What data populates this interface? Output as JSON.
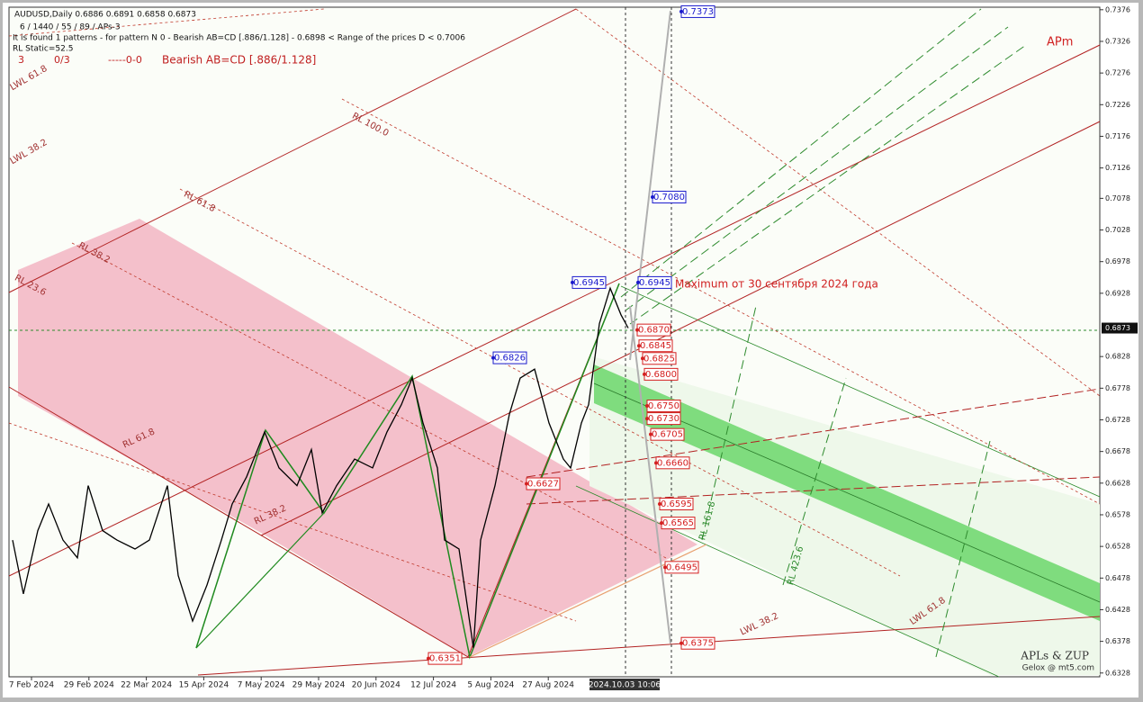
{
  "chart_data": {
    "type": "line",
    "title": "AUDUSD,Daily  0.6886 0.6891 0.6858 0.6873",
    "info_lines": [
      "6 / 1440 / 55 / 89 / APs-3",
      "It is found 1 patterns  -  for pattern N 0 - Bearish AB=CD [.886/1.128] - 0.6898 < Range of the prices D < 0.7006",
      "RL Static=52.5"
    ],
    "status": [
      "3",
      "0/3",
      "-----0-0",
      "Bearish AB=CD [.886/1.128]"
    ],
    "brand": "APm",
    "annotation": "Maximum от 30 сентября 2024 года",
    "footer": [
      "APLs & ZUP",
      "Gelox @ mt5.com"
    ],
    "line_labels": [
      "RL 100.0",
      "RL 61.8",
      "RL 38.2",
      "RL 23.6",
      "LWL 61.8",
      "LWL 38.2",
      "RL 161.8",
      "RL 423.6",
      "RL 61.8",
      "RL 38.2",
      "LWL 38.2",
      "LWL 61.8"
    ],
    "x_labels": [
      "7 Feb 2024",
      "29 Feb 2024",
      "22 Mar 2024",
      "15 Apr 2024",
      "7 May 2024",
      "29 May 2024",
      "20 Jun 2024",
      "12 Jul 2024",
      "5 Aug 2024",
      "27 Aug 2024"
    ],
    "cursor_label": "2024.10.03 10:06",
    "x": [
      1,
      4,
      8,
      11,
      15,
      19,
      22,
      26,
      30,
      35,
      39,
      44,
      47,
      51,
      55,
      59,
      62,
      66,
      71,
      75,
      80,
      84,
      87,
      91,
      96,
      101,
      105,
      109,
      112,
      115,
      119,
      121,
      125,
      129,
      131,
      135,
      139,
      142,
      146,
      150,
      154,
      156,
      159,
      161,
      164,
      167,
      170,
      172
    ],
    "values": [
      0.6538,
      0.6453,
      0.6553,
      0.6595,
      0.6538,
      0.651,
      0.6624,
      0.6553,
      0.6538,
      0.6524,
      0.6538,
      0.6624,
      0.6482,
      0.641,
      0.6467,
      0.6538,
      0.6595,
      0.6638,
      0.6709,
      0.6652,
      0.6624,
      0.6681,
      0.6581,
      0.6624,
      0.6666,
      0.6652,
      0.6709,
      0.6752,
      0.6794,
      0.6723,
      0.6652,
      0.6538,
      0.6524,
      0.6368,
      0.6538,
      0.6624,
      0.6737,
      0.6794,
      0.6808,
      0.6723,
      0.6666,
      0.6652,
      0.6723,
      0.6752,
      0.688,
      0.6936,
      0.6894,
      0.6873
    ],
    "color": "#000000",
    "xlim": [
      0,
      303
    ],
    "ylim": [
      0.6322,
      0.738
    ],
    "yticks": [
      0.7376,
      0.7326,
      0.7276,
      0.7226,
      0.7176,
      0.7126,
      0.7078,
      0.7028,
      0.6978,
      0.6928,
      0.6828,
      0.6778,
      0.6728,
      0.6678,
      0.6628,
      0.6578,
      0.6528,
      0.6478,
      0.6428,
      0.6378,
      0.6328
    ],
    "current_price": {
      "value": 0.6873,
      "label": "0.6873"
    },
    "levels": [
      {
        "value": 0.7373,
        "label": "0.7373",
        "color": "#1a1acc"
      },
      {
        "value": 0.708,
        "label": "0.7080",
        "color": "#1a1acc"
      },
      {
        "value": 0.6945,
        "label": "0.6945",
        "color": "#1a1acc"
      },
      {
        "value": 0.6945,
        "label": "0.6945",
        "color": "#1a1acc"
      },
      {
        "value": 0.6826,
        "label": "0.6826",
        "color": "#1a1acc"
      },
      {
        "value": 0.687,
        "label": "0.6870",
        "color": "#d42020"
      },
      {
        "value": 0.6845,
        "label": "0.6845",
        "color": "#d42020"
      },
      {
        "value": 0.6825,
        "label": "0.6825",
        "color": "#d42020"
      },
      {
        "value": 0.68,
        "label": "0.6800",
        "color": "#d42020"
      },
      {
        "value": 0.675,
        "label": "0.6750",
        "color": "#d42020"
      },
      {
        "value": 0.673,
        "label": "0.6730",
        "color": "#d42020"
      },
      {
        "value": 0.6705,
        "label": "0.6705",
        "color": "#d42020"
      },
      {
        "value": 0.666,
        "label": "0.6660",
        "color": "#d42020"
      },
      {
        "value": 0.6627,
        "label": "0.6627",
        "color": "#d42020"
      },
      {
        "value": 0.6595,
        "label": "0.6595",
        "color": "#d42020"
      },
      {
        "value": 0.6565,
        "label": "0.6565",
        "color": "#d42020"
      },
      {
        "value": 0.6495,
        "label": "0.6495",
        "color": "#d42020"
      },
      {
        "value": 0.6375,
        "label": "0.6375",
        "color": "#d42020"
      },
      {
        "value": 0.6351,
        "label": "0.6351",
        "color": "#d42020"
      }
    ]
  }
}
